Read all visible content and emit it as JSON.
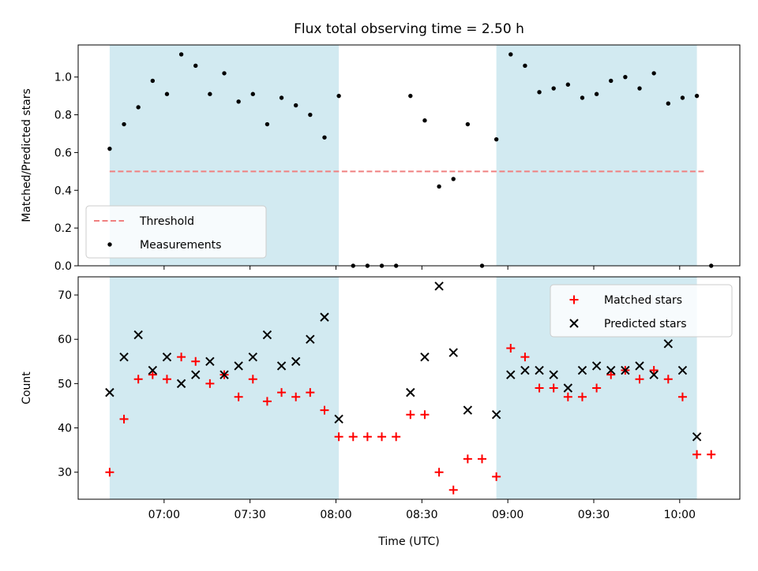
{
  "title": "Flux total observing time = 2.50 h",
  "xlabel": "Time (UTC)",
  "x_ticks": [
    "07:00",
    "07:30",
    "08:00",
    "08:30",
    "09:00",
    "09:30",
    "10:00"
  ],
  "colors": {
    "span": "#add8e6",
    "threshold": "#f08080",
    "measurement": "#000000",
    "matched": "#ff0000",
    "predicted": "#000000"
  },
  "chart_data": [
    {
      "type": "scatter",
      "ylabel": "Matched/Predicted stars",
      "xlim": [
        "06:30",
        "10:21"
      ],
      "ylim": [
        0,
        1.17
      ],
      "y_ticks": [
        "0.0",
        "0.2",
        "0.4",
        "0.6",
        "0.8",
        "1.0"
      ],
      "y_tick_values": [
        0,
        0.2,
        0.4,
        0.6,
        0.8,
        1.0
      ],
      "legend": {
        "position": "lower-left",
        "entries": [
          "Threshold",
          "Measurements"
        ]
      },
      "shaded_spans": [
        [
          "06:41",
          "08:01"
        ],
        [
          "08:56",
          "10:06"
        ]
      ],
      "threshold": {
        "name": "Threshold",
        "value": 0.5,
        "x_range": [
          "06:41",
          "10:09"
        ]
      },
      "series": [
        {
          "name": "Measurements",
          "x": [
            "06:41",
            "06:46",
            "06:51",
            "06:56",
            "07:01",
            "07:06",
            "07:11",
            "07:16",
            "07:21",
            "07:26",
            "07:31",
            "07:36",
            "07:41",
            "07:46",
            "07:51",
            "07:56",
            "08:01",
            "08:06",
            "08:11",
            "08:16",
            "08:21",
            "08:26",
            "08:31",
            "08:36",
            "08:41",
            "08:46",
            "08:51",
            "08:56",
            "09:01",
            "09:06",
            "09:11",
            "09:16",
            "09:21",
            "09:26",
            "09:31",
            "09:36",
            "09:41",
            "09:46",
            "09:51",
            "09:56",
            "10:01",
            "10:06",
            "10:11"
          ],
          "y": [
            0.62,
            0.75,
            0.84,
            0.98,
            0.91,
            1.12,
            1.06,
            0.91,
            1.02,
            0.87,
            0.91,
            0.75,
            0.89,
            0.85,
            0.8,
            0.68,
            0.9,
            0,
            0,
            0,
            0,
            0.9,
            0.77,
            0.42,
            0.46,
            0.75,
            0,
            0.67,
            1.12,
            1.06,
            0.92,
            0.94,
            0.96,
            0.89,
            0.91,
            0.98,
            1.0,
            0.94,
            1.02,
            0.86,
            0.89,
            0.9,
            0
          ]
        }
      ]
    },
    {
      "type": "scatter",
      "ylabel": "Count",
      "xlabel": "Time (UTC)",
      "xlim": [
        "06:30",
        "10:21"
      ],
      "ylim": [
        23.9,
        74.1
      ],
      "y_ticks": [
        "30",
        "40",
        "50",
        "60",
        "70"
      ],
      "y_tick_values": [
        30,
        40,
        50,
        60,
        70
      ],
      "legend": {
        "position": "top-right",
        "entries": [
          "Matched stars",
          "Predicted stars"
        ]
      },
      "shaded_spans": [
        [
          "06:41",
          "08:01"
        ],
        [
          "08:56",
          "10:06"
        ]
      ],
      "series": [
        {
          "name": "Matched stars",
          "marker": "plus",
          "x": [
            "06:41",
            "06:46",
            "06:51",
            "06:56",
            "07:01",
            "07:06",
            "07:11",
            "07:16",
            "07:21",
            "07:26",
            "07:31",
            "07:36",
            "07:41",
            "07:46",
            "07:51",
            "07:56",
            "08:01",
            "08:06",
            "08:11",
            "08:16",
            "08:21",
            "08:26",
            "08:31",
            "08:36",
            "08:41",
            "08:46",
            "08:51",
            "08:56",
            "09:01",
            "09:06",
            "09:11",
            "09:16",
            "09:21",
            "09:26",
            "09:31",
            "09:36",
            "09:41",
            "09:46",
            "09:51",
            "09:56",
            "10:01",
            "10:06",
            "10:11"
          ],
          "y": [
            30,
            42,
            51,
            52,
            51,
            56,
            55,
            50,
            52,
            47,
            51,
            46,
            48,
            47,
            48,
            44,
            38,
            38,
            38,
            38,
            38,
            43,
            43,
            30,
            26,
            33,
            33,
            29,
            58,
            56,
            49,
            49,
            47,
            47,
            49,
            52,
            53,
            51,
            53,
            51,
            47,
            34,
            34
          ]
        },
        {
          "name": "Predicted stars",
          "marker": "x",
          "x": [
            "06:41",
            "06:46",
            "06:51",
            "06:56",
            "07:01",
            "07:06",
            "07:11",
            "07:16",
            "07:21",
            "07:26",
            "07:31",
            "07:36",
            "07:41",
            "07:46",
            "07:51",
            "07:56",
            "08:01",
            "08:26",
            "08:31",
            "08:36",
            "08:41",
            "08:46",
            "08:56",
            "09:01",
            "09:06",
            "09:11",
            "09:16",
            "09:21",
            "09:26",
            "09:31",
            "09:36",
            "09:41",
            "09:46",
            "09:51",
            "09:56",
            "10:01",
            "10:06"
          ],
          "y": [
            48,
            56,
            61,
            53,
            56,
            50,
            52,
            55,
            52,
            54,
            56,
            61,
            54,
            55,
            60,
            65,
            42,
            48,
            56,
            72,
            57,
            44,
            43,
            52,
            53,
            53,
            52,
            49,
            53,
            54,
            53,
            53,
            54,
            52,
            59,
            53,
            38
          ]
        }
      ]
    }
  ]
}
